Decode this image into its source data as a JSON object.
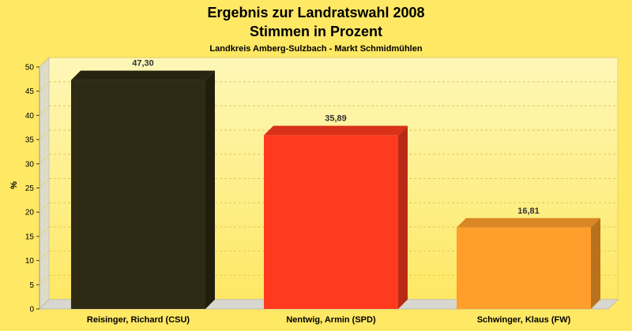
{
  "colors": {
    "background": "#FEE864",
    "plot_top": "#FEF7B8",
    "plot_bottom": "#FEE864",
    "grid": "#E0C860"
  },
  "chart_data": {
    "type": "bar",
    "title": "Ergebnis zur Landratswahl 2008",
    "subtitle": "Stimmen in Prozent",
    "subsubtitle": "Landkreis Amberg-Sulzbach - Markt Schmidmühlen",
    "ylabel": "%",
    "ylim": [
      0,
      50
    ],
    "yticks": [
      0,
      5,
      10,
      15,
      20,
      25,
      30,
      35,
      40,
      45,
      50
    ],
    "grid": true,
    "categories": [
      "Reisinger, Richard (CSU)",
      "Nentwig, Armin (SPD)",
      "Schwinger, Klaus (FW)"
    ],
    "values": [
      47.3,
      35.89,
      16.81
    ],
    "value_labels": [
      "47,30",
      "35,89",
      "16,81"
    ],
    "bar_colors": [
      "#2E2A14",
      "#FF3A1E",
      "#FF9E2A"
    ]
  }
}
